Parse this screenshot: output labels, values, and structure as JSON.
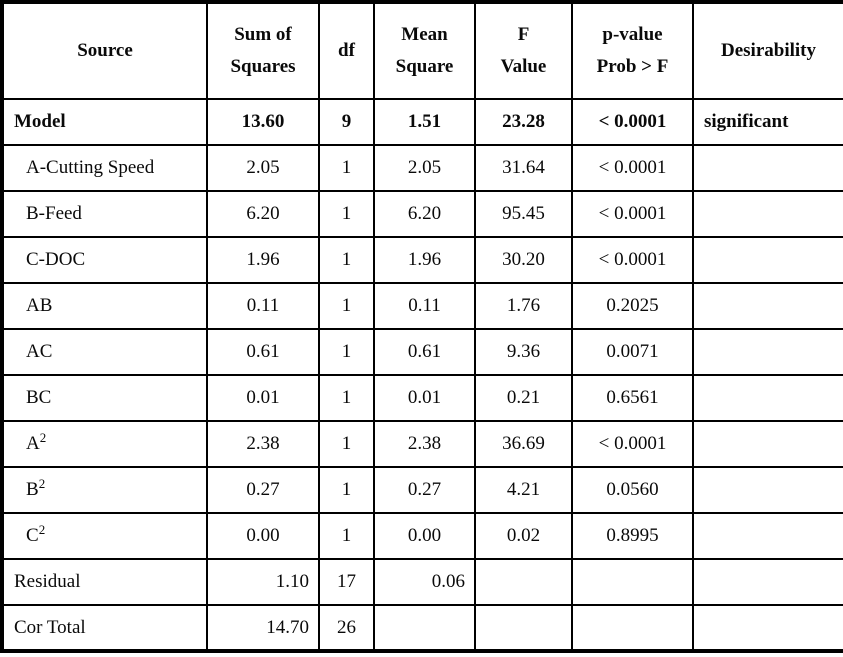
{
  "table": {
    "headers": [
      {
        "line1": "Source"
      },
      {
        "line1": "Sum of",
        "line2": "Squares"
      },
      {
        "line1": "df"
      },
      {
        "line1": "Mean",
        "line2": "Square"
      },
      {
        "line1": "F",
        "line2": "Value"
      },
      {
        "line1": "p-value",
        "line2": "Prob > F"
      },
      {
        "line1": "Desirability"
      }
    ],
    "rows": [
      {
        "source": "Model",
        "sum_sq": "13.60",
        "df": "9",
        "mean_sq": "1.51",
        "f": "23.28",
        "p": "< 0.0001",
        "desirability": "significant"
      },
      {
        "source": "A-Cutting Speed",
        "sum_sq": "2.05",
        "df": "1",
        "mean_sq": "2.05",
        "f": "31.64",
        "p": "< 0.0001",
        "desirability": ""
      },
      {
        "source": "B-Feed",
        "sum_sq": "6.20",
        "df": "1",
        "mean_sq": "6.20",
        "f": "95.45",
        "p": "< 0.0001",
        "desirability": ""
      },
      {
        "source": "C-DOC",
        "sum_sq": "1.96",
        "df": "1",
        "mean_sq": "1.96",
        "f": "30.20",
        "p": "< 0.0001",
        "desirability": ""
      },
      {
        "source": "AB",
        "sum_sq": "0.11",
        "df": "1",
        "mean_sq": "0.11",
        "f": "1.76",
        "p": "0.2025",
        "desirability": ""
      },
      {
        "source": "AC",
        "sum_sq": "0.61",
        "df": "1",
        "mean_sq": "0.61",
        "f": "9.36",
        "p": "0.0071",
        "desirability": ""
      },
      {
        "source": "BC",
        "sum_sq": "0.01",
        "df": "1",
        "mean_sq": "0.01",
        "f": "0.21",
        "p": "0.6561",
        "desirability": ""
      },
      {
        "source": "A",
        "source_sup": "2",
        "sum_sq": "2.38",
        "df": "1",
        "mean_sq": "2.38",
        "f": "36.69",
        "p": "< 0.0001",
        "desirability": ""
      },
      {
        "source": "B",
        "source_sup": "2",
        "sum_sq": "0.27",
        "df": "1",
        "mean_sq": "0.27",
        "f": "4.21",
        "p": "0.0560",
        "desirability": ""
      },
      {
        "source": "C",
        "source_sup": "2",
        "sum_sq": "0.00",
        "df": "1",
        "mean_sq": "0.00",
        "f": "0.02",
        "p": "0.8995",
        "desirability": ""
      },
      {
        "source": "Residual",
        "sum_sq": "1.10",
        "df": "17",
        "mean_sq": "0.06",
        "f": "",
        "p": "",
        "desirability": ""
      },
      {
        "source": "Cor Total",
        "sum_sq": "14.70",
        "df": "26",
        "mean_sq": "",
        "f": "",
        "p": "",
        "desirability": ""
      }
    ]
  }
}
